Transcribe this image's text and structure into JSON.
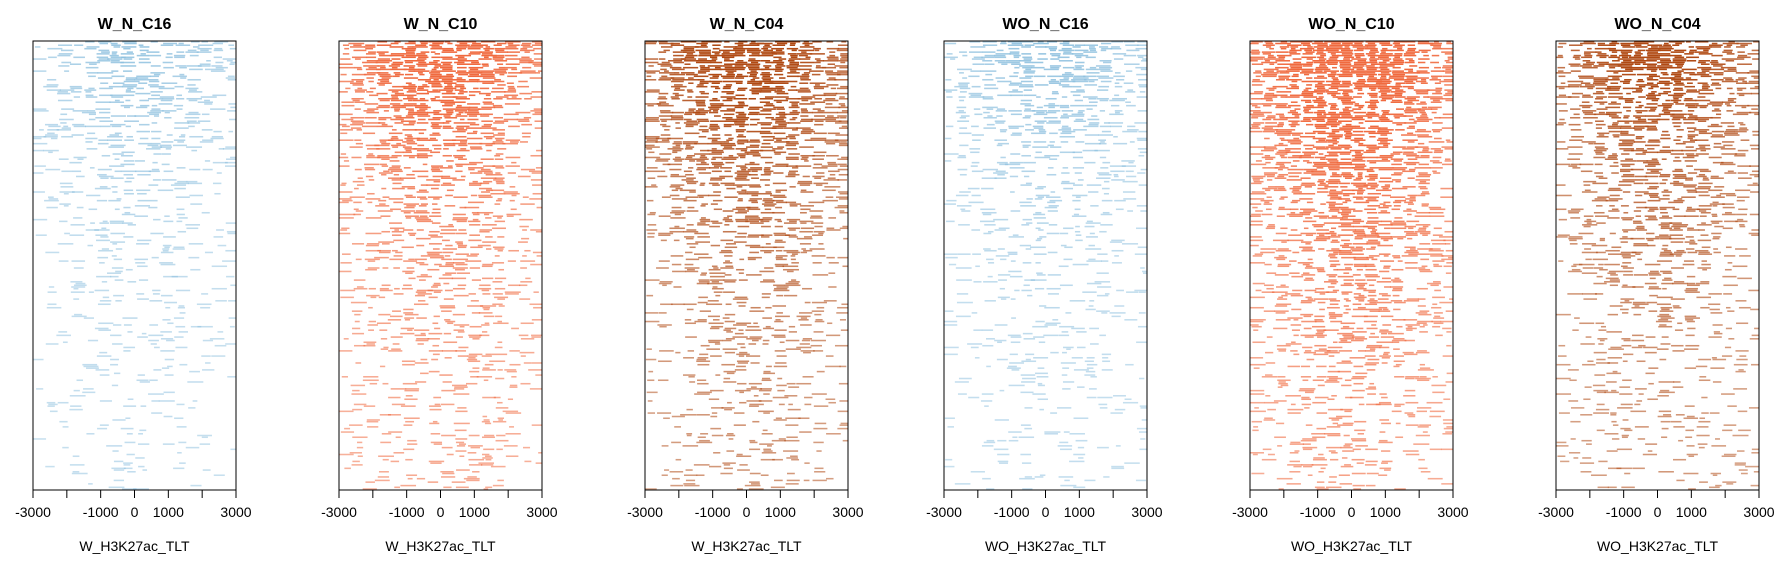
{
  "figure": {
    "background": "#ffffff"
  },
  "chart_data": [
    {
      "type": "heatmap",
      "title": "W_N_C16",
      "xlabel": "W_H3K27ac_TLT",
      "ylabel": "",
      "xlim": [
        -3000,
        3000
      ],
      "x_ticks": [
        -3000,
        -2000,
        -1000,
        0,
        1000,
        2000,
        3000
      ],
      "x_tick_labels": [
        "-3000",
        "",
        "-1000",
        "0",
        "1000",
        "",
        "3000"
      ],
      "color": "#8cbfde",
      "density": {
        "x": [
          -3000,
          -1000,
          0,
          1000,
          3000
        ],
        "row_fraction": [
          0.0,
          0.25,
          0.5,
          0.75,
          1.0
        ],
        "fill": [
          0.35,
          0.75,
          0.9,
          0.75,
          0.35
        ],
        "tail": [
          0.55,
          0.28,
          0.16,
          0.12,
          0.1
        ]
      }
    },
    {
      "type": "heatmap",
      "title": "W_N_C10",
      "xlabel": "W_H3K27ac_TLT",
      "ylabel": "",
      "xlim": [
        -3000,
        3000
      ],
      "x_ticks": [
        -3000,
        -2000,
        -1000,
        0,
        1000,
        2000,
        3000
      ],
      "x_tick_labels": [
        "-3000",
        "",
        "-1000",
        "0",
        "1000",
        "",
        "3000"
      ],
      "color": "#f06a3f",
      "density": {
        "x": [
          -3000,
          -1000,
          0,
          1000,
          3000
        ],
        "row_fraction": [
          0.0,
          0.25,
          0.5,
          0.75,
          1.0
        ],
        "fill": [
          0.45,
          0.85,
          0.95,
          0.85,
          0.45
        ],
        "tail": [
          0.85,
          0.5,
          0.3,
          0.2,
          0.15
        ]
      }
    },
    {
      "type": "heatmap",
      "title": "W_N_C04",
      "xlabel": "W_H3K27ac_TLT",
      "ylabel": "",
      "xlim": [
        -3000,
        3000
      ],
      "x_ticks": [
        -3000,
        -2000,
        -1000,
        0,
        1000,
        2000,
        3000
      ],
      "x_tick_labels": [
        "-3000",
        "",
        "-1000",
        "0",
        "1000",
        "",
        "3000"
      ],
      "color": "#b04a14",
      "density": {
        "x": [
          -3000,
          -1000,
          0,
          1000,
          3000
        ],
        "row_fraction": [
          0.0,
          0.25,
          0.5,
          0.75,
          1.0
        ],
        "fill": [
          0.45,
          0.85,
          0.95,
          0.85,
          0.45
        ],
        "tail": [
          0.85,
          0.5,
          0.3,
          0.2,
          0.15
        ]
      }
    },
    {
      "type": "heatmap",
      "title": "WO_N_C16",
      "xlabel": "WO_H3K27ac_TLT",
      "ylabel": "",
      "xlim": [
        -3000,
        3000
      ],
      "x_ticks": [
        -3000,
        -2000,
        -1000,
        0,
        1000,
        2000,
        3000
      ],
      "x_tick_labels": [
        "-3000",
        "",
        "-1000",
        "0",
        "1000",
        "",
        "3000"
      ],
      "color": "#8cbfde",
      "density": {
        "x": [
          -3000,
          -1000,
          0,
          1000,
          3000
        ],
        "row_fraction": [
          0.0,
          0.25,
          0.5,
          0.75,
          1.0
        ],
        "fill": [
          0.4,
          0.8,
          0.92,
          0.8,
          0.4
        ],
        "tail": [
          0.6,
          0.3,
          0.18,
          0.13,
          0.1
        ]
      }
    },
    {
      "type": "heatmap",
      "title": "WO_N_C10",
      "xlabel": "WO_H3K27ac_TLT",
      "ylabel": "",
      "xlim": [
        -3000,
        3000
      ],
      "x_ticks": [
        -3000,
        -2000,
        -1000,
        0,
        1000,
        2000,
        3000
      ],
      "x_tick_labels": [
        "-3000",
        "",
        "-1000",
        "0",
        "1000",
        "",
        "3000"
      ],
      "color": "#f06a3f",
      "density": {
        "x": [
          -3000,
          -1000,
          0,
          1000,
          3000
        ],
        "row_fraction": [
          0.0,
          0.25,
          0.5,
          0.75,
          1.0
        ],
        "fill": [
          0.5,
          0.9,
          0.97,
          0.9,
          0.5
        ],
        "tail": [
          0.9,
          0.6,
          0.4,
          0.28,
          0.2
        ]
      }
    },
    {
      "type": "heatmap",
      "title": "WO_N_C04",
      "xlabel": "WO_H3K27ac_TLT",
      "ylabel": "",
      "xlim": [
        -3000,
        3000
      ],
      "x_ticks": [
        -3000,
        -2000,
        -1000,
        0,
        1000,
        2000,
        3000
      ],
      "x_tick_labels": [
        "-3000",
        "",
        "-1000",
        "0",
        "1000",
        "",
        "3000"
      ],
      "color": "#b04a14",
      "density": {
        "x": [
          -3000,
          -1000,
          0,
          1000,
          3000
        ],
        "row_fraction": [
          0.0,
          0.25,
          0.5,
          0.75,
          1.0
        ],
        "fill": [
          0.45,
          0.85,
          0.95,
          0.85,
          0.45
        ],
        "tail": [
          0.8,
          0.45,
          0.28,
          0.18,
          0.14
        ]
      }
    }
  ]
}
